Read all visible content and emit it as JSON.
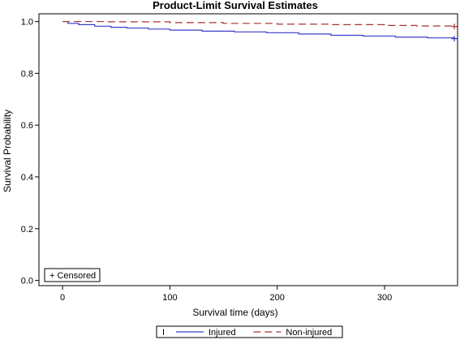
{
  "chart_data": {
    "type": "line",
    "title": "Product-Limit Survival Estimates",
    "xlabel": "Survival time (days)",
    "ylabel": "Survival Probability",
    "xlim": [
      -22,
      368
    ],
    "ylim": [
      -0.02,
      1.03
    ],
    "x_ticks": [
      0,
      100,
      200,
      300
    ],
    "y_ticks": [
      0.0,
      0.2,
      0.4,
      0.6,
      0.8,
      1.0
    ],
    "y_tick_labels": [
      "0.0",
      "0.2",
      "0.4",
      "0.6",
      "0.8",
      "1.0"
    ],
    "grid": false,
    "censored_legend": "+ Censored",
    "legend_position": "bottom-center",
    "legend_bar_glyph": "I",
    "series": [
      {
        "name": "Injured",
        "color": "#3b3bc8",
        "dash": "solid",
        "censor_x": 365,
        "points": [
          [
            0,
            1.0
          ],
          [
            5,
            0.993
          ],
          [
            15,
            0.988
          ],
          [
            30,
            0.982
          ],
          [
            45,
            0.978
          ],
          [
            60,
            0.975
          ],
          [
            80,
            0.971
          ],
          [
            100,
            0.967
          ],
          [
            130,
            0.963
          ],
          [
            160,
            0.96
          ],
          [
            190,
            0.957
          ],
          [
            220,
            0.952
          ],
          [
            250,
            0.947
          ],
          [
            280,
            0.944
          ],
          [
            310,
            0.94
          ],
          [
            340,
            0.937
          ],
          [
            365,
            0.934
          ]
        ]
      },
      {
        "name": "Non-injured",
        "color": "#a83232",
        "dash": "dashed",
        "censor_x": 365,
        "points": [
          [
            0,
            1.0
          ],
          [
            40,
            0.999
          ],
          [
            100,
            0.996
          ],
          [
            150,
            0.993
          ],
          [
            200,
            0.99
          ],
          [
            250,
            0.988
          ],
          [
            300,
            0.985
          ],
          [
            330,
            0.983
          ],
          [
            365,
            0.981
          ]
        ]
      }
    ]
  }
}
